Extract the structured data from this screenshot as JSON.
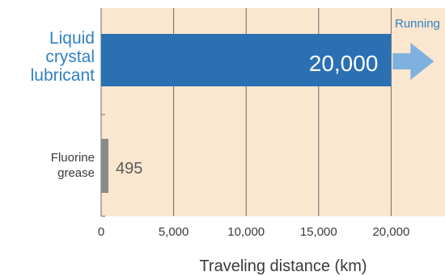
{
  "colors": {
    "plot_background": "#fbe6cf",
    "grid": "#6b6b6b",
    "liquid_crystal_bar": "#2a70b3",
    "liquid_crystal_label": "#2f82c2",
    "fluorine_bar": "#8a8a8a",
    "arrow": "#7fb1df",
    "text": "#3a3a3a"
  },
  "chart_data": {
    "type": "bar",
    "orientation": "horizontal",
    "categories": [
      "Liquid crystal lubricant",
      "Fluorine grease"
    ],
    "category_labels": [
      [
        "Liquid",
        "crystal",
        "lubricant"
      ],
      [
        "Fluorine",
        "grease"
      ]
    ],
    "values": [
      20000,
      495
    ],
    "value_labels": [
      "20,000",
      "495"
    ],
    "xlabel": "Traveling distance (km)",
    "xlim": [
      0,
      24000
    ],
    "xticks": [
      0,
      5000,
      10000,
      15000,
      20000
    ],
    "xtick_labels": [
      "0",
      "5,000",
      "10,000",
      "15,000",
      "20,000"
    ],
    "grid": true,
    "annotation": {
      "text": "Running",
      "icon": "right-arrow-icon",
      "attached_to": "Liquid crystal lubricant"
    }
  }
}
